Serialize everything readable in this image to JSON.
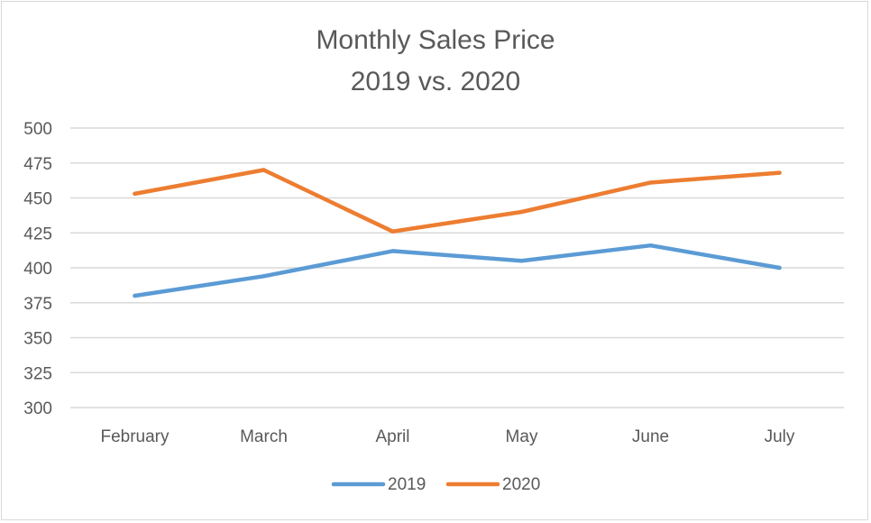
{
  "chart_data": {
    "type": "line",
    "title": "Monthly Sales Price",
    "subtitle": "2019 vs. 2020",
    "categories": [
      "February",
      "March",
      "April",
      "May",
      "June",
      "July"
    ],
    "series": [
      {
        "name": "2019",
        "color": "#5b9bd5",
        "values": [
          380,
          394,
          412,
          405,
          416,
          400
        ]
      },
      {
        "name": "2020",
        "color": "#ed7d31",
        "values": [
          453,
          470,
          426,
          440,
          461,
          468
        ]
      }
    ],
    "ylim": [
      300,
      500
    ],
    "yticks": [
      300,
      325,
      350,
      375,
      400,
      425,
      450,
      475,
      500
    ],
    "grid": true,
    "legend": "bottom"
  }
}
